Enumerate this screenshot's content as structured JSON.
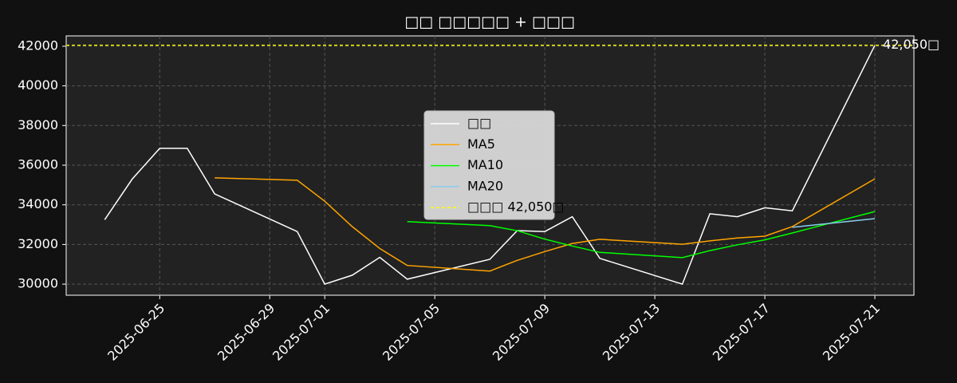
{
  "chart_data": {
    "type": "line",
    "title": "□□ □□□□□ + □□□",
    "x": [
      "2025-06-23",
      "2025-06-24",
      "2025-06-25",
      "2025-06-26",
      "2025-06-27",
      "2025-06-30",
      "2025-07-01",
      "2025-07-02",
      "2025-07-03",
      "2025-07-04",
      "2025-07-07",
      "2025-07-08",
      "2025-07-09",
      "2025-07-10",
      "2025-07-11",
      "2025-07-14",
      "2025-07-15",
      "2025-07-16",
      "2025-07-17",
      "2025-07-18",
      "2025-07-21"
    ],
    "series": [
      {
        "name": "□□",
        "color": "#ffffff",
        "values": [
          33250,
          35300,
          36850,
          36850,
          34550,
          32650,
          30000,
          30450,
          31350,
          30250,
          31250,
          32700,
          32650,
          33400,
          31300,
          30000,
          33550,
          33400,
          33850,
          33700,
          42050
        ]
      },
      {
        "name": "MA5",
        "color": "#ffa500",
        "values": [
          null,
          null,
          null,
          null,
          35360,
          35240,
          34180,
          32900,
          31800,
          30940,
          30660,
          31200,
          31640,
          32050,
          32260,
          32010,
          32180,
          32330,
          32420,
          32900,
          35310
        ]
      },
      {
        "name": "MA10",
        "color": "#00ff00",
        "values": [
          null,
          null,
          null,
          null,
          null,
          null,
          null,
          null,
          null,
          33150,
          32950,
          32690,
          32270,
          31925,
          31600,
          31335,
          31690,
          31985,
          32235,
          32580,
          33660
        ]
      },
      {
        "name": "MA20",
        "color": "#87ceeb",
        "values": [
          null,
          null,
          null,
          null,
          null,
          null,
          null,
          null,
          null,
          null,
          null,
          null,
          null,
          null,
          null,
          null,
          null,
          null,
          null,
          32865,
          33305
        ]
      }
    ],
    "hline": {
      "value": 42050,
      "label": "□□□ 42,050□",
      "color": "#ffff00",
      "annotation": "42,050□"
    },
    "xlim": [
      "2025-06-21T14:24:00Z",
      "2025-07-22T10:05:00Z"
    ],
    "xticks": [
      "2025-06-25",
      "2025-06-29",
      "2025-07-01",
      "2025-07-05",
      "2025-07-09",
      "2025-07-13",
      "2025-07-17",
      "2025-07-21"
    ],
    "ylim": [
      29440,
      42520
    ],
    "yticks": [
      30000,
      32000,
      34000,
      36000,
      38000,
      40000,
      42000
    ],
    "grid": true,
    "legend": "center"
  }
}
